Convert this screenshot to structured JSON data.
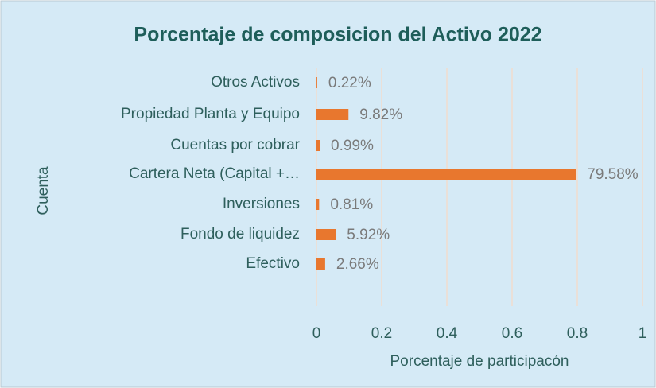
{
  "chart_data": {
    "type": "bar",
    "orientation": "horizontal",
    "title": "Porcentaje de composicion del Activo 2022",
    "x_label": "Porcentaje de participacón",
    "y_label": "Cuenta",
    "categories": [
      "Otros Activos",
      "Propiedad Planta y Equipo",
      "Cuentas por cobrar",
      "Cartera Neta (Capital +…",
      "Inversiones",
      "Fondo de liquidez",
      "Efectivo"
    ],
    "values": [
      0.0022,
      0.0982,
      0.0099,
      0.7958,
      0.0081,
      0.0592,
      0.0266
    ],
    "value_labels": [
      "0.22%",
      "9.82%",
      "0.99%",
      "79.58%",
      "0.81%",
      "5.92%",
      "2.66%"
    ],
    "color": "#e8772e",
    "xlim": [
      0,
      1
    ],
    "xticks": [
      0,
      0.2,
      0.4,
      0.6,
      0.8,
      1
    ],
    "grid": true
  }
}
